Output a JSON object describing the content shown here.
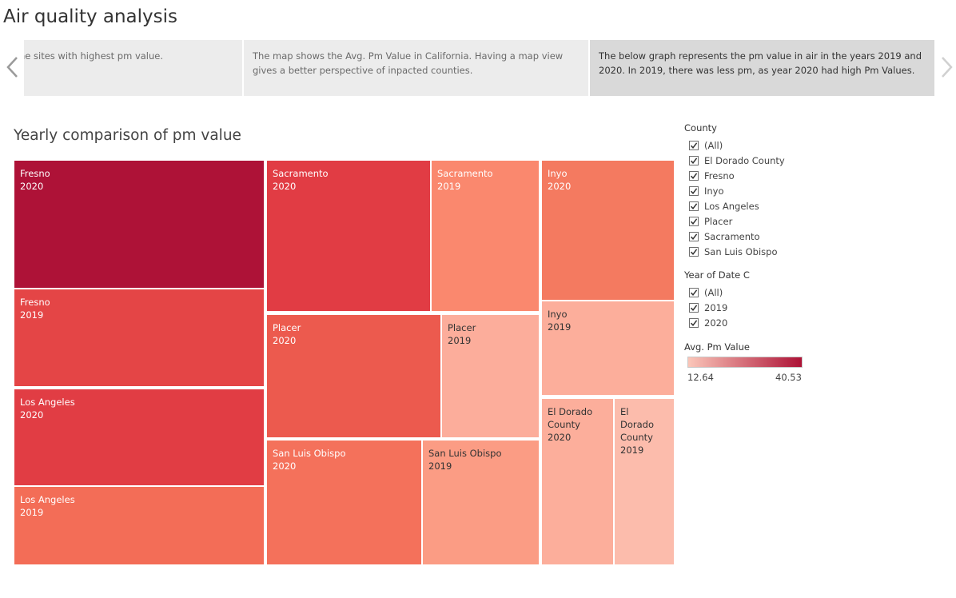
{
  "page_title": "Air quality analysis",
  "story_points": [
    {
      "text": "he sites with highest pm value."
    },
    {
      "text": "The map shows the Avg. Pm Value in California. Having a map view gives a better perspective of inpacted counties."
    },
    {
      "text": "The below graph represents the pm value in air in the years 2019 and 2020. In 2019, there was less pm, as year 2020 had high Pm Values."
    }
  ],
  "viz_title": "Yearly comparison of pm value",
  "filters": {
    "county": {
      "title": "County",
      "items": [
        {
          "label": "(All)",
          "checked": true
        },
        {
          "label": "El Dorado County",
          "checked": true
        },
        {
          "label": "Fresno",
          "checked": true
        },
        {
          "label": "Inyo",
          "checked": true
        },
        {
          "label": "Los Angeles",
          "checked": true
        },
        {
          "label": "Placer",
          "checked": true
        },
        {
          "label": "Sacramento",
          "checked": true
        },
        {
          "label": "San Luis Obispo",
          "checked": true
        }
      ]
    },
    "year": {
      "title": "Year of Date C",
      "items": [
        {
          "label": "(All)",
          "checked": true
        },
        {
          "label": "2019",
          "checked": true
        },
        {
          "label": "2020",
          "checked": true
        }
      ]
    }
  },
  "legend": {
    "title": "Avg. Pm Value",
    "min_label": "12.64",
    "max_label": "40.53",
    "min_color": "#fbc6b9",
    "max_color": "#ad1236"
  },
  "icons": {
    "previous": "chevron-left-icon",
    "next": "chevron-right-icon",
    "checkbox": "checkmark-icon"
  },
  "chart_data": {
    "type": "treemap",
    "title": "Yearly comparison of pm value",
    "color_measure": "Avg. Pm Value",
    "size_measure": "",
    "cells": [
      {
        "county": "Fresno",
        "year": "2020",
        "color": "#ae1237"
      },
      {
        "county": "Fresno",
        "year": "2019",
        "color": "#e44546"
      },
      {
        "county": "Los Angeles",
        "year": "2020",
        "color": "#e13d44"
      },
      {
        "county": "Los Angeles",
        "year": "2019",
        "color": "#f36d57"
      },
      {
        "county": "Sacramento",
        "year": "2020",
        "color": "#e13c44"
      },
      {
        "county": "Sacramento",
        "year": "2019",
        "color": "#fa886e"
      },
      {
        "county": "Placer",
        "year": "2020",
        "color": "#ec5a4e"
      },
      {
        "county": "Placer",
        "year": "2019",
        "color": "#fcad9b"
      },
      {
        "county": "San Luis Obispo",
        "year": "2020",
        "color": "#f4715b"
      },
      {
        "county": "San Luis Obispo",
        "year": "2019",
        "color": "#fb9c84"
      },
      {
        "county": "Inyo",
        "year": "2020",
        "color": "#f47a60"
      },
      {
        "county": "Inyo",
        "year": "2019",
        "color": "#fcae9b"
      },
      {
        "county": "El Dorado County",
        "year": "2020",
        "color": "#fcae9b"
      },
      {
        "county": "El Dorado County",
        "year": "2019",
        "color": "#fcbcac"
      }
    ]
  }
}
